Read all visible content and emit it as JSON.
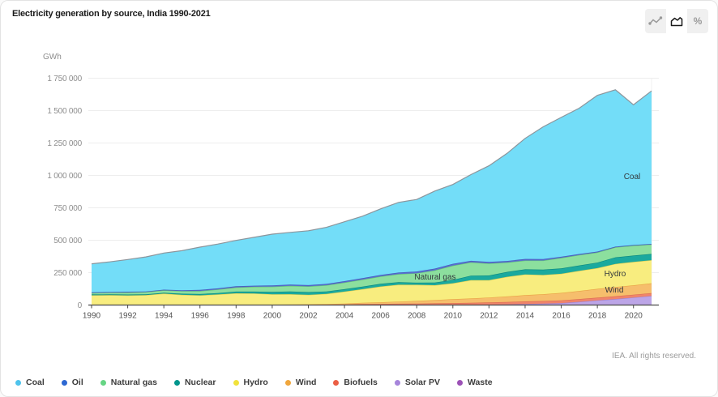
{
  "card": {
    "title": "Electricity generation by source, India 1990-2021",
    "footer": "IEA. All rights reserved."
  },
  "toolbar": {
    "active_mode": "area",
    "modes": [
      "line",
      "area",
      "percent"
    ]
  },
  "chart_data": {
    "type": "area",
    "stacked": true,
    "title": "Electricity generation by source, India 1990-2021",
    "unit_label": "GWh",
    "ylabel": "GWh",
    "xlabel": "",
    "ylim": [
      0,
      1750000
    ],
    "grid": true,
    "legend_position": "bottom",
    "x": [
      1990,
      1991,
      1992,
      1993,
      1994,
      1995,
      1996,
      1997,
      1998,
      1999,
      2000,
      2001,
      2002,
      2003,
      2004,
      2005,
      2006,
      2007,
      2008,
      2009,
      2010,
      2011,
      2012,
      2013,
      2014,
      2015,
      2016,
      2017,
      2018,
      2019,
      2020,
      2021
    ],
    "x_tick_years": [
      1990,
      1992,
      1994,
      1996,
      1998,
      2000,
      2002,
      2004,
      2006,
      2008,
      2010,
      2012,
      2014,
      2016,
      2018,
      2020
    ],
    "y_ticks": [
      {
        "value": 0,
        "label": "0"
      },
      {
        "value": 250000,
        "label": "250 000"
      },
      {
        "value": 500000,
        "label": "500 000"
      },
      {
        "value": 750000,
        "label": "750 000"
      },
      {
        "value": 1000000,
        "label": "1 000 000"
      },
      {
        "value": 1250000,
        "label": "1 250 000"
      },
      {
        "value": 1500000,
        "label": "1 500 000"
      },
      {
        "value": 1750000,
        "label": "1 750 000"
      }
    ],
    "series": [
      {
        "id": "waste",
        "name": "Waste",
        "fill": "#A05BBF",
        "edge": "#8348A0",
        "values": [
          0,
          0,
          0,
          0,
          0,
          0,
          0,
          0,
          0,
          0,
          0,
          0,
          0,
          0,
          0,
          0,
          0,
          0,
          0,
          0,
          0,
          0,
          0,
          0,
          0,
          0,
          0,
          0,
          0,
          200,
          300,
          400
        ]
      },
      {
        "id": "solar-pv",
        "name": "Solar PV",
        "fill": "#BCA5E7",
        "edge": "#9D82D2",
        "values": [
          0,
          0,
          0,
          0,
          0,
          0,
          0,
          0,
          0,
          0,
          0,
          0,
          0,
          0,
          0,
          0,
          0,
          0,
          0,
          0,
          100,
          800,
          3000,
          5000,
          8000,
          11000,
          15000,
          25000,
          36000,
          46000,
          58000,
          70000
        ]
      },
      {
        "id": "biofuels",
        "name": "Biofuels",
        "fill": "#F0846B",
        "edge": "#DB6A50",
        "values": [
          0,
          0,
          0,
          0,
          0,
          0,
          0,
          0,
          0,
          0,
          500,
          1000,
          2000,
          3000,
          4500,
          8000,
          9000,
          10000,
          11000,
          13000,
          15000,
          16000,
          17000,
          18000,
          20000,
          20000,
          21000,
          21000,
          21000,
          22000,
          22000,
          22000
        ]
      },
      {
        "id": "wind",
        "name": "Wind",
        "fill": "#F6BE6C",
        "edge": "#E8A145",
        "values": [
          0,
          0,
          100,
          200,
          300,
          600,
          1200,
          1600,
          1900,
          2200,
          2500,
          3000,
          3500,
          5000,
          7000,
          9500,
          12000,
          17000,
          21000,
          25000,
          30000,
          34000,
          38000,
          43000,
          48000,
          53000,
          58000,
          63000,
          68000,
          71000,
          72000,
          76000
        ]
      },
      {
        "id": "hydro",
        "name": "Hydro",
        "fill": "#F8ED7F",
        "edge": "#E3D052",
        "values": [
          75000,
          76000,
          74000,
          76000,
          88000,
          78000,
          74000,
          80000,
          89000,
          87000,
          80000,
          80000,
          73000,
          78000,
          92000,
          105000,
          122000,
          130000,
          124000,
          115000,
          123000,
          141000,
          134000,
          152000,
          160000,
          148000,
          147000,
          155000,
          160000,
          178000,
          180000,
          178000
        ]
      },
      {
        "id": "nuclear",
        "name": "Nuclear",
        "fill": "#1BA99E",
        "edge": "#0A877E",
        "values": [
          6700,
          6200,
          7400,
          6000,
          6200,
          8700,
          9800,
          11200,
          13000,
          14400,
          18500,
          21300,
          21200,
          19200,
          18800,
          19500,
          20500,
          19500,
          16400,
          20400,
          25500,
          35300,
          36000,
          37500,
          39500,
          41000,
          41500,
          41500,
          42700,
          50900,
          49300,
          48200
        ]
      },
      {
        "id": "natural-gas",
        "name": "Natural gas",
        "fill": "#8CDF9E",
        "edge": "#5FBF7B",
        "values": [
          11500,
          13500,
          15500,
          17500,
          19000,
          21000,
          24000,
          28000,
          32000,
          37500,
          40500,
          43000,
          44500,
          48000,
          52000,
          55000,
          58000,
          62000,
          73500,
          94500,
          111000,
          102500,
          93500,
          73500,
          68000,
          71000,
          81000,
          80500,
          78500,
          77500,
          77000,
          72800
        ]
      },
      {
        "id": "oil",
        "name": "Oil",
        "fill": "#5A6ED0",
        "edge": "#4459B8",
        "values": [
          5000,
          5200,
          6000,
          5500,
          5500,
          6000,
          8000,
          7800,
          9000,
          8200,
          9800,
          9300,
          9800,
          10000,
          9900,
          10800,
          10600,
          12200,
          12600,
          13600,
          13300,
          11600,
          11100,
          10800,
          12000,
          11000,
          9300,
          7700,
          6000,
          5000,
          4400,
          4400
        ]
      },
      {
        "id": "coal",
        "name": "Coal",
        "fill": "#73DDF8",
        "edge": "#8C959C",
        "values": [
          220000,
          232000,
          248000,
          266000,
          282000,
          305000,
          330000,
          342000,
          354000,
          373000,
          395000,
          403000,
          419000,
          436000,
          458000,
          478000,
          510000,
          541000,
          556000,
          598000,
          612000,
          665000,
          742000,
          830000,
          930000,
          1020000,
          1075000,
          1125000,
          1205000,
          1210000,
          1082000,
          1180000
        ]
      }
    ],
    "legend": [
      {
        "id": "coal",
        "label": "Coal",
        "color": "#4EC3EC"
      },
      {
        "id": "oil",
        "label": "Oil",
        "color": "#2D68D2"
      },
      {
        "id": "natural-gas",
        "label": "Natural gas",
        "color": "#66D584"
      },
      {
        "id": "nuclear",
        "label": "Nuclear",
        "color": "#00958C"
      },
      {
        "id": "hydro",
        "label": "Hydro",
        "color": "#F1E23C"
      },
      {
        "id": "wind",
        "label": "Wind",
        "color": "#F0A63C"
      },
      {
        "id": "biofuels",
        "label": "Biofuels",
        "color": "#EB5E44"
      },
      {
        "id": "solar-pv",
        "label": "Solar PV",
        "color": "#A685DB"
      },
      {
        "id": "waste",
        "label": "Waste",
        "color": "#9C51B6"
      }
    ],
    "annotations": [
      {
        "text": "Coal",
        "x": 779,
        "y": 220
      },
      {
        "text": "Natural gas",
        "x": 536,
        "y": 344
      },
      {
        "text": "Hydro",
        "x": 758,
        "y": 340
      },
      {
        "text": "Wind",
        "x": 757,
        "y": 360
      }
    ]
  }
}
